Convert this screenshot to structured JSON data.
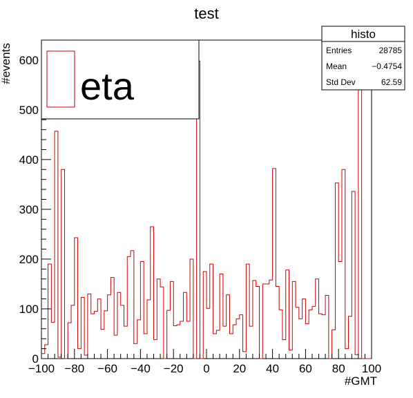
{
  "chart_data": {
    "type": "bar",
    "title": "test",
    "xlabel": "#GMT",
    "ylabel": "#events",
    "xlim": [
      -100,
      100
    ],
    "ylim": [
      0,
      640
    ],
    "x_ticks": [
      -100,
      -80,
      -60,
      -40,
      -20,
      0,
      20,
      40,
      60,
      80,
      100
    ],
    "x_tick_labels": [
      "−100",
      "−80",
      "−60",
      "−40",
      "−20",
      "0",
      "20",
      "40",
      "60",
      "80",
      "100"
    ],
    "y_ticks": [
      0,
      100,
      200,
      300,
      400,
      500,
      600
    ],
    "y_tick_labels": [
      "0",
      "100",
      "200",
      "300",
      "400",
      "500",
      "600"
    ],
    "bin_width": 2,
    "series": [
      {
        "name": "eta",
        "color": "#cc0000",
        "bin_low_edges": [
          -100,
          -98,
          -96,
          -94,
          -92,
          -90,
          -88,
          -86,
          -84,
          -82,
          -80,
          -78,
          -76,
          -74,
          -72,
          -70,
          -68,
          -66,
          -64,
          -62,
          -60,
          -58,
          -56,
          -54,
          -52,
          -50,
          -48,
          -46,
          -44,
          -42,
          -40,
          -38,
          -36,
          -34,
          -32,
          -30,
          -28,
          -26,
          -24,
          -22,
          -20,
          -18,
          -16,
          -14,
          -12,
          -10,
          -8,
          -6,
          -4,
          -2,
          0,
          2,
          4,
          6,
          8,
          10,
          12,
          14,
          16,
          18,
          20,
          22,
          24,
          26,
          28,
          30,
          32,
          34,
          36,
          38,
          40,
          42,
          44,
          46,
          48,
          50,
          52,
          54,
          56,
          58,
          60,
          62,
          64,
          66,
          68,
          70,
          72,
          74,
          76,
          78,
          80,
          82,
          84,
          86,
          88,
          90,
          92,
          94,
          96,
          98
        ],
        "values": [
          10,
          28,
          190,
          73,
          457,
          3,
          380,
          0,
          72,
          107,
          243,
          20,
          123,
          7,
          130,
          90,
          95,
          120,
          59,
          96,
          128,
          163,
          47,
          133,
          107,
          65,
          205,
          217,
          30,
          78,
          195,
          50,
          118,
          265,
          38,
          160,
          144,
          0,
          97,
          155,
          66,
          68,
          75,
          133,
          75,
          200,
          0,
          598,
          0,
          175,
          101,
          190,
          50,
          57,
          170,
          65,
          128,
          50,
          68,
          80,
          88,
          14,
          190,
          65,
          157,
          145,
          0,
          150,
          150,
          158,
          382,
          145,
          98,
          38,
          178,
          17,
          155,
          103,
          80,
          120,
          70,
          98,
          105,
          160,
          90,
          88,
          127,
          0,
          58,
          353,
          195,
          380,
          20,
          85,
          336,
          8,
          540,
          0,
          0,
          0
        ]
      }
    ],
    "legend": {
      "placement": "top-left",
      "entries": [
        "eta"
      ]
    },
    "stats_box": {
      "title": "histo",
      "placement": "top-right",
      "rows": [
        {
          "label": "Entries",
          "value": "28785"
        },
        {
          "label": "Mean",
          "value": "−0.4754"
        },
        {
          "label": "Std Dev",
          "value": "62.59"
        }
      ]
    },
    "grid": false
  },
  "colors": {
    "line": "#cc0000",
    "frame": "#000000",
    "background": "#ffffff"
  }
}
